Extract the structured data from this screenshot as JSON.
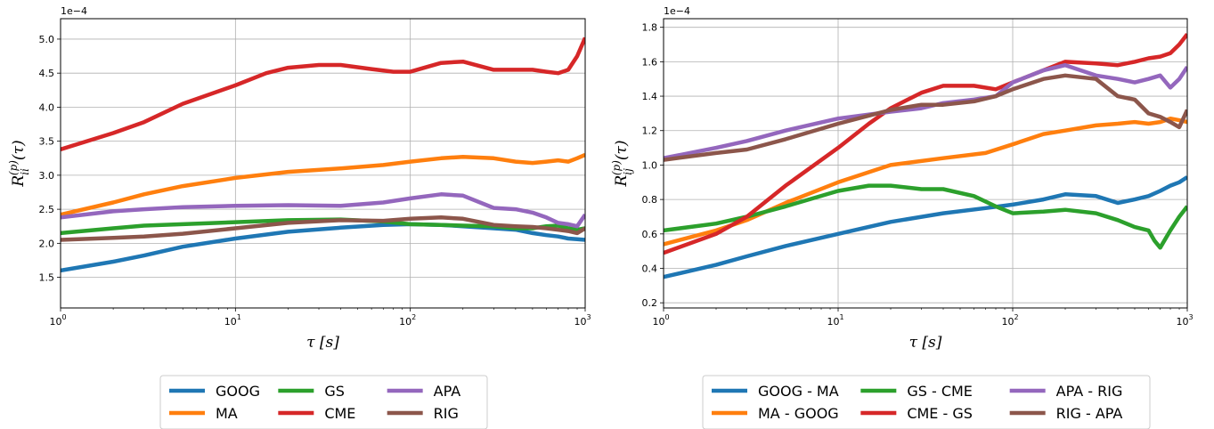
{
  "chart_data": [
    {
      "type": "line",
      "title": "",
      "xlabel": "τ [s]",
      "ylabel": "R_ii^(p)(τ)",
      "y_offset_label": "1e−4",
      "xscale": "log",
      "xlim": [
        1,
        1000
      ],
      "ylim": [
        1.05,
        5.3
      ],
      "x_ticks": [
        1,
        10,
        100,
        1000
      ],
      "x_tick_labels": [
        {
          "base": "10",
          "exp": "0"
        },
        {
          "base": "10",
          "exp": "1"
        },
        {
          "base": "10",
          "exp": "2"
        },
        {
          "base": "10",
          "exp": "3"
        }
      ],
      "y_ticks": [
        1.5,
        2.0,
        2.5,
        3.0,
        3.5,
        4.0,
        4.5,
        5.0
      ],
      "y_tick_labels": [
        "1.5",
        "2.0",
        "2.5",
        "3.0",
        "3.5",
        "4.0",
        "4.5",
        "5.0"
      ],
      "grid": true,
      "legend_position": "below",
      "series": [
        {
          "name": "GOOG",
          "color": "#1f77b4",
          "x": [
            1,
            2,
            3,
            5,
            10,
            20,
            40,
            70,
            100,
            150,
            200,
            300,
            400,
            500,
            600,
            700,
            800,
            900,
            1000
          ],
          "y": [
            1.6,
            1.73,
            1.82,
            1.95,
            2.07,
            2.17,
            2.23,
            2.27,
            2.28,
            2.27,
            2.25,
            2.22,
            2.2,
            2.15,
            2.12,
            2.1,
            2.07,
            2.06,
            2.05
          ]
        },
        {
          "name": "MA",
          "color": "#ff7f0e",
          "x": [
            1,
            2,
            3,
            5,
            10,
            20,
            40,
            70,
            100,
            150,
            200,
            300,
            400,
            500,
            600,
            700,
            800,
            900,
            1000
          ],
          "y": [
            2.42,
            2.6,
            2.72,
            2.84,
            2.96,
            3.05,
            3.1,
            3.15,
            3.2,
            3.25,
            3.27,
            3.25,
            3.2,
            3.18,
            3.2,
            3.22,
            3.2,
            3.25,
            3.3
          ]
        },
        {
          "name": "GS",
          "color": "#2ca02c",
          "x": [
            1,
            2,
            3,
            5,
            10,
            20,
            40,
            70,
            100,
            150,
            200,
            300,
            400,
            500,
            600,
            700,
            800,
            900,
            1000
          ],
          "y": [
            2.15,
            2.22,
            2.26,
            2.28,
            2.31,
            2.34,
            2.35,
            2.32,
            2.28,
            2.27,
            2.26,
            2.25,
            2.22,
            2.22,
            2.25,
            2.26,
            2.22,
            2.2,
            2.22
          ]
        },
        {
          "name": "CME",
          "color": "#d62728",
          "x": [
            1,
            2,
            3,
            5,
            10,
            15,
            20,
            30,
            40,
            60,
            80,
            100,
            150,
            200,
            300,
            400,
            500,
            600,
            700,
            800,
            900,
            1000
          ],
          "y": [
            3.38,
            3.62,
            3.78,
            4.05,
            4.32,
            4.5,
            4.58,
            4.62,
            4.62,
            4.56,
            4.52,
            4.52,
            4.65,
            4.67,
            4.55,
            4.55,
            4.55,
            4.52,
            4.5,
            4.55,
            4.75,
            5.02
          ]
        },
        {
          "name": "APA",
          "color": "#9467bd",
          "x": [
            1,
            2,
            3,
            5,
            10,
            20,
            40,
            70,
            100,
            150,
            200,
            300,
            400,
            500,
            600,
            700,
            800,
            900,
            1000
          ],
          "y": [
            2.38,
            2.47,
            2.5,
            2.53,
            2.55,
            2.56,
            2.55,
            2.6,
            2.66,
            2.72,
            2.7,
            2.52,
            2.5,
            2.45,
            2.38,
            2.3,
            2.28,
            2.25,
            2.42
          ]
        },
        {
          "name": "RIG",
          "color": "#8c564b",
          "x": [
            1,
            2,
            3,
            5,
            10,
            20,
            40,
            70,
            100,
            150,
            200,
            300,
            400,
            500,
            600,
            700,
            800,
            900,
            1000
          ],
          "y": [
            2.05,
            2.08,
            2.1,
            2.14,
            2.22,
            2.3,
            2.34,
            2.33,
            2.36,
            2.38,
            2.36,
            2.27,
            2.25,
            2.24,
            2.22,
            2.2,
            2.18,
            2.15,
            2.22
          ]
        }
      ]
    },
    {
      "type": "line",
      "title": "",
      "xlabel": "τ [s]",
      "ylabel": "R_ij^(p)(τ)",
      "y_offset_label": "1e−4",
      "xscale": "log",
      "xlim": [
        1,
        1000
      ],
      "ylim": [
        0.17,
        1.85
      ],
      "x_ticks": [
        1,
        10,
        100,
        1000
      ],
      "x_tick_labels": [
        {
          "base": "10",
          "exp": "0"
        },
        {
          "base": "10",
          "exp": "1"
        },
        {
          "base": "10",
          "exp": "2"
        },
        {
          "base": "10",
          "exp": "3"
        }
      ],
      "y_ticks": [
        0.2,
        0.4,
        0.6,
        0.8,
        1.0,
        1.2,
        1.4,
        1.6,
        1.8
      ],
      "y_tick_labels": [
        "0.2",
        "0.4",
        "0.6",
        "0.8",
        "1.0",
        "1.2",
        "1.4",
        "1.6",
        "1.8"
      ],
      "grid": true,
      "legend_position": "below",
      "series": [
        {
          "name": "GOOG - MA",
          "color": "#1f77b4",
          "x": [
            1,
            2,
            3,
            5,
            10,
            20,
            40,
            70,
            100,
            150,
            200,
            300,
            400,
            500,
            600,
            700,
            800,
            900,
            1000
          ],
          "y": [
            0.35,
            0.42,
            0.47,
            0.53,
            0.6,
            0.67,
            0.72,
            0.75,
            0.77,
            0.8,
            0.83,
            0.82,
            0.78,
            0.8,
            0.82,
            0.85,
            0.88,
            0.9,
            0.93
          ]
        },
        {
          "name": "MA - GOOG",
          "color": "#ff7f0e",
          "x": [
            1,
            2,
            3,
            5,
            10,
            20,
            40,
            70,
            100,
            150,
            200,
            300,
            400,
            500,
            600,
            700,
            800,
            900,
            1000
          ],
          "y": [
            0.54,
            0.62,
            0.68,
            0.78,
            0.9,
            1.0,
            1.04,
            1.07,
            1.12,
            1.18,
            1.2,
            1.23,
            1.24,
            1.25,
            1.24,
            1.25,
            1.27,
            1.26,
            1.25
          ]
        },
        {
          "name": "GS - CME",
          "color": "#2ca02c",
          "x": [
            1,
            2,
            3,
            5,
            10,
            15,
            20,
            30,
            40,
            60,
            80,
            100,
            150,
            200,
            300,
            400,
            500,
            600,
            650,
            700,
            800,
            900,
            1000
          ],
          "y": [
            0.62,
            0.66,
            0.7,
            0.76,
            0.85,
            0.88,
            0.88,
            0.86,
            0.86,
            0.82,
            0.76,
            0.72,
            0.73,
            0.74,
            0.72,
            0.68,
            0.64,
            0.62,
            0.56,
            0.52,
            0.62,
            0.7,
            0.76
          ]
        },
        {
          "name": "CME - GS",
          "color": "#d62728",
          "x": [
            1,
            2,
            3,
            5,
            10,
            15,
            20,
            30,
            40,
            60,
            80,
            100,
            150,
            200,
            300,
            400,
            500,
            600,
            700,
            800,
            900,
            1000
          ],
          "y": [
            0.49,
            0.6,
            0.7,
            0.88,
            1.1,
            1.24,
            1.33,
            1.42,
            1.46,
            1.46,
            1.44,
            1.48,
            1.55,
            1.6,
            1.59,
            1.58,
            1.6,
            1.62,
            1.63,
            1.65,
            1.7,
            1.76
          ]
        },
        {
          "name": "APA - RIG",
          "color": "#9467bd",
          "x": [
            1,
            2,
            3,
            5,
            10,
            20,
            30,
            40,
            60,
            80,
            100,
            150,
            200,
            300,
            400,
            500,
            600,
            700,
            800,
            900,
            1000
          ],
          "y": [
            1.04,
            1.1,
            1.14,
            1.2,
            1.27,
            1.31,
            1.33,
            1.36,
            1.38,
            1.4,
            1.48,
            1.55,
            1.58,
            1.52,
            1.5,
            1.48,
            1.5,
            1.52,
            1.45,
            1.5,
            1.57
          ]
        },
        {
          "name": "RIG - APA",
          "color": "#8c564b",
          "x": [
            1,
            2,
            3,
            5,
            10,
            20,
            30,
            40,
            60,
            80,
            100,
            150,
            200,
            300,
            400,
            500,
            600,
            700,
            800,
            900,
            1000
          ],
          "y": [
            1.03,
            1.07,
            1.09,
            1.15,
            1.24,
            1.32,
            1.35,
            1.35,
            1.37,
            1.4,
            1.44,
            1.5,
            1.52,
            1.5,
            1.4,
            1.38,
            1.3,
            1.28,
            1.25,
            1.22,
            1.32
          ]
        }
      ]
    }
  ]
}
